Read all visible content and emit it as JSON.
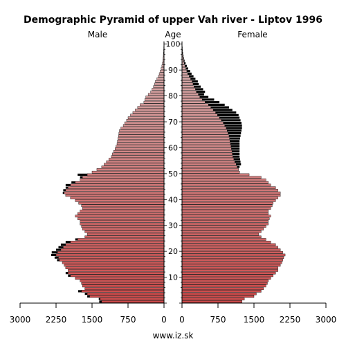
{
  "chart_data": {
    "type": "population-pyramid",
    "title": "Demographic Pyramid of upper Vah river - Liptov 1996",
    "left_label": "Male",
    "center_label": "Age",
    "right_label": "Female",
    "footer": "www.iz.sk",
    "x_ticks": [
      3000,
      2250,
      1500,
      750,
      0
    ],
    "x_ticks_female": [
      0,
      750,
      1500,
      2250,
      3000
    ],
    "x_max": 3000,
    "age_ticks": [
      10,
      20,
      30,
      40,
      50,
      60,
      70,
      80,
      90,
      100
    ],
    "age_max": 100,
    "ages": [
      0,
      1,
      2,
      3,
      4,
      5,
      6,
      7,
      8,
      9,
      10,
      11,
      12,
      13,
      14,
      15,
      16,
      17,
      18,
      19,
      20,
      21,
      22,
      23,
      24,
      25,
      26,
      27,
      28,
      29,
      30,
      31,
      32,
      33,
      34,
      35,
      36,
      37,
      38,
      39,
      40,
      41,
      42,
      43,
      44,
      45,
      46,
      47,
      48,
      49,
      50,
      51,
      52,
      53,
      54,
      55,
      56,
      57,
      58,
      59,
      60,
      61,
      62,
      63,
      64,
      65,
      66,
      67,
      68,
      69,
      70,
      71,
      72,
      73,
      74,
      75,
      76,
      77,
      78,
      79,
      80,
      81,
      82,
      83,
      84,
      85,
      86,
      87,
      88,
      89,
      90,
      91,
      92,
      93,
      94,
      95,
      96,
      97,
      98,
      99,
      100
    ],
    "male": [
      1300,
      1330,
      1550,
      1600,
      1720,
      1650,
      1700,
      1720,
      1750,
      1850,
      1950,
      2000,
      2000,
      2050,
      2080,
      2120,
      2180,
      2200,
      2250,
      2220,
      2150,
      2100,
      2050,
      1950,
      1800,
      1650,
      1600,
      1650,
      1700,
      1720,
      1750,
      1750,
      1800,
      1850,
      1800,
      1750,
      1700,
      1720,
      1780,
      1850,
      1950,
      2050,
      2080,
      2050,
      2000,
      1950,
      1850,
      1750,
      1700,
      1600,
      1500,
      1400,
      1300,
      1250,
      1200,
      1150,
      1100,
      1080,
      1050,
      1020,
      1000,
      980,
      970,
      960,
      950,
      940,
      930,
      900,
      850,
      820,
      780,
      750,
      700,
      650,
      600,
      550,
      500,
      420,
      400,
      380,
      330,
      280,
      250,
      220,
      200,
      180,
      150,
      120,
      100,
      80,
      60,
      45,
      35,
      25,
      20,
      15,
      10,
      8,
      6,
      4,
      3
    ],
    "female": [
      1250,
      1300,
      1500,
      1550,
      1650,
      1700,
      1750,
      1780,
      1800,
      1850,
      1900,
      1950,
      2000,
      2000,
      2050,
      2080,
      2100,
      2120,
      2150,
      2100,
      2050,
      2000,
      1950,
      1850,
      1750,
      1650,
      1600,
      1650,
      1700,
      1750,
      1800,
      1800,
      1820,
      1850,
      1800,
      1800,
      1850,
      1880,
      1900,
      1950,
      2000,
      2050,
      2050,
      2000,
      1950,
      1850,
      1800,
      1750,
      1650,
      1400,
      1200,
      1180,
      1150,
      1130,
      1100,
      1080,
      1060,
      1050,
      1040,
      1030,
      1020,
      1010,
      1000,
      990,
      980,
      960,
      940,
      920,
      890,
      860,
      820,
      780,
      740,
      700,
      650,
      600,
      550,
      480,
      420,
      370,
      340,
      300,
      280,
      250,
      230,
      210,
      180,
      150,
      120,
      100,
      80,
      60,
      45,
      35,
      25,
      18,
      12,
      8,
      6,
      4,
      3
    ],
    "female_excess": [
      0,
      0,
      0,
      0,
      0,
      0,
      0,
      0,
      0,
      0,
      0,
      0,
      0,
      0,
      0,
      0,
      0,
      0,
      0,
      0,
      0,
      0,
      0,
      0,
      0,
      0,
      0,
      0,
      0,
      0,
      0,
      0,
      0,
      0,
      0,
      0,
      0,
      0,
      0,
      0,
      0,
      0,
      0,
      0,
      0,
      0,
      0,
      0,
      0,
      0,
      0,
      0,
      50,
      100,
      120,
      130,
      140,
      150,
      160,
      170,
      180,
      190,
      200,
      220,
      240,
      270,
      300,
      330,
      360,
      380,
      400,
      420,
      440,
      430,
      400,
      380,
      340,
      300,
      250,
      180,
      120,
      180,
      160,
      140,
      120,
      120,
      100,
      90,
      80,
      70,
      50,
      40,
      30,
      20,
      15,
      12,
      8,
      5,
      4,
      3,
      2
    ],
    "male_excess": [
      50,
      30,
      50,
      50,
      70,
      0,
      0,
      0,
      0,
      0,
      50,
      50,
      0,
      0,
      0,
      0,
      50,
      80,
      100,
      120,
      100,
      100,
      100,
      100,
      50,
      0,
      0,
      0,
      0,
      0,
      0,
      0,
      0,
      0,
      0,
      0,
      0,
      0,
      0,
      0,
      0,
      0,
      30,
      50,
      50,
      100,
      80,
      0,
      50,
      200,
      0,
      0,
      0,
      0,
      0,
      0,
      0,
      0,
      0,
      0,
      0,
      0,
      0,
      0,
      0,
      0,
      0,
      0,
      0,
      0,
      0,
      0,
      0,
      0,
      0,
      0,
      0,
      0,
      0,
      0,
      0,
      0,
      0,
      0,
      0,
      0,
      0,
      0,
      0,
      0,
      0,
      0,
      0,
      0,
      0,
      0,
      0,
      0,
      0,
      0,
      0
    ],
    "colors": {
      "bar_top": "#d8b4b4",
      "bar_bottom": "#cc4a4a",
      "excess": "#000000",
      "axis": "#000000",
      "bar_stroke": "#000000"
    }
  }
}
